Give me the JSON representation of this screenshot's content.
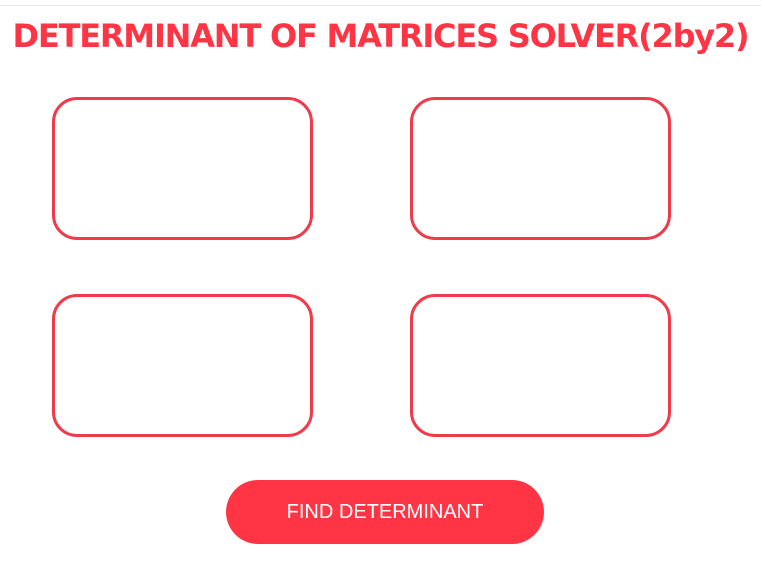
{
  "header": {
    "title": "DETERMINANT OF MATRICES SOLVER(2by2)"
  },
  "matrix": {
    "cells": [
      {
        "id": "a11",
        "value": "",
        "placeholder": ""
      },
      {
        "id": "a12",
        "value": "",
        "placeholder": ""
      },
      {
        "id": "a21",
        "value": "",
        "placeholder": ""
      },
      {
        "id": "a22",
        "value": "",
        "placeholder": ""
      }
    ]
  },
  "actions": {
    "find_label": "FIND DETERMINANT"
  },
  "colors": {
    "accent": "#ff3445",
    "cell_border": "#ef3b4a",
    "background": "#ffffff"
  }
}
